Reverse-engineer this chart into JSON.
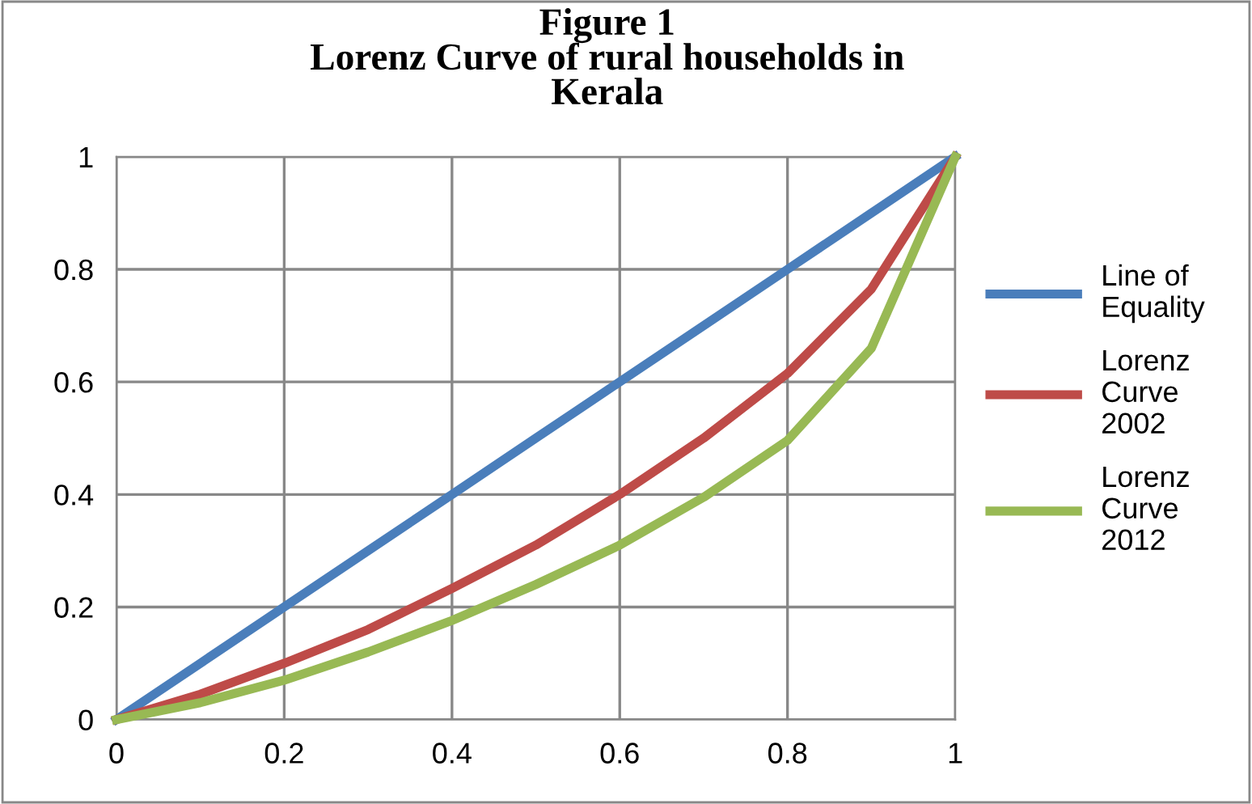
{
  "chart_data": {
    "type": "line",
    "title": "Figure 1\nLorenz Curve of rural households in\nKerala",
    "x": [
      0,
      0.1,
      0.2,
      0.3,
      0.4,
      0.5,
      0.6,
      0.7,
      0.8,
      0.9,
      1
    ],
    "series": [
      {
        "name": "Line of\nEquality",
        "color": "#4a7ebb",
        "values": [
          0,
          0.1,
          0.2,
          0.3,
          0.4,
          0.5,
          0.6,
          0.7,
          0.8,
          0.9,
          1
        ]
      },
      {
        "name": "Lorenz\nCurve\n2002",
        "color": "#be4b48",
        "values": [
          0,
          0.045,
          0.1,
          0.16,
          0.233,
          0.31,
          0.4,
          0.5,
          0.615,
          0.765,
          1
        ]
      },
      {
        "name": "Lorenz\nCurve\n2012",
        "color": "#98b954",
        "values": [
          0,
          0.03,
          0.07,
          0.12,
          0.176,
          0.24,
          0.31,
          0.395,
          0.496,
          0.66,
          1
        ]
      }
    ],
    "xlim": [
      0,
      1
    ],
    "ylim": [
      0,
      1
    ],
    "xticks": [
      0,
      0.2,
      0.4,
      0.6,
      0.8,
      1
    ],
    "yticks": [
      0,
      0.2,
      0.4,
      0.6,
      0.8,
      1
    ],
    "grid": true,
    "legend": "right",
    "marker": "none",
    "line_style": "solid"
  }
}
